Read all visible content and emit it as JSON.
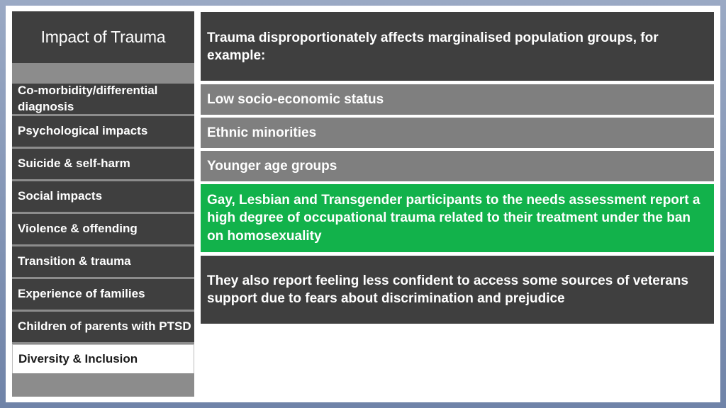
{
  "sidebar": {
    "title": "Impact of Trauma",
    "items": [
      {
        "label": "Co-morbidity/differential diagnosis"
      },
      {
        "label": "Psychological impacts"
      },
      {
        "label": "Suicide & self-harm"
      },
      {
        "label": "Social impacts"
      },
      {
        "label": "Violence & offending"
      },
      {
        "label": "Transition & trauma"
      },
      {
        "label": "Experience of families"
      },
      {
        "label": "Children of parents with PTSD"
      },
      {
        "label": "Diversity & Inclusion"
      }
    ],
    "active_item": "Diversity & Inclusion"
  },
  "main": {
    "intro": "Trauma disproportionately affects marginalised population groups, for example:",
    "groups": [
      "Low socio-economic status",
      "Ethnic minorities",
      "Younger age groups"
    ],
    "highlight": "Gay, Lesbian and Transgender participants to the needs assessment report a high degree of occupational trauma related to their treatment under the ban on homosexuality",
    "note": "They also report feeling less confident to access some sources of veterans support due to fears about discrimination and prejudice"
  },
  "colors": {
    "dark_box": "#3f3f3f",
    "gray_box": "#7f7f7f",
    "highlight_green": "#12b24b",
    "frame": "#7a8db0"
  }
}
